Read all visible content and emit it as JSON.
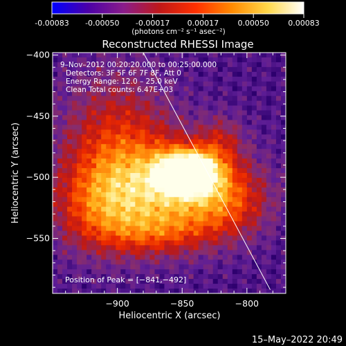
{
  "footer": {
    "timestamp": "15–May–2022 20:49"
  },
  "colorbar": {
    "ticks": [
      "-0.00083",
      "-0.00050",
      "-0.00017",
      "0.00017",
      "0.00050",
      "0.00083"
    ],
    "unit_label": "(photons cm⁻² s⁻¹ asec⁻²)",
    "stops": [
      "#0000ff",
      "#4b00a8",
      "#8a1c8a",
      "#c01818",
      "#ff3000",
      "#ff8a00",
      "#ffd84a",
      "#ffffff"
    ]
  },
  "chart_data": {
    "type": "heatmap",
    "title": "Reconstructed RHESSI Image",
    "xlabel": "Heliocentric X (arcsec)",
    "ylabel": "Heliocentric Y (arcsec)",
    "xlim": [
      -950,
      -770
    ],
    "ylim": [
      -595,
      -398
    ],
    "x_ticks": [
      {
        "value": -900,
        "label": "−900"
      },
      {
        "value": -850,
        "label": "−850"
      },
      {
        "value": -800,
        "label": "−800"
      }
    ],
    "y_ticks": [
      {
        "value": -400,
        "label": "−400"
      },
      {
        "value": -450,
        "label": "−450"
      },
      {
        "value": -500,
        "label": "−500"
      },
      {
        "value": -550,
        "label": "−550"
      }
    ],
    "annotations": [
      "9–Nov–2012 00:20:20.000 to 00:25:00.000",
      "Detectors: 3F 5F 6F 7F 8F, Att 0",
      "Energy Range: 12.0 – 25.0 keV",
      "Clean     Total counts: 6.47E+03"
    ],
    "peak_label": "Position of Peak = [−841,−492]",
    "peak": {
      "x": -841,
      "y": -492
    },
    "limb_line": [
      {
        "x": -880,
        "y": -398
      },
      {
        "x": -782,
        "y": -592
      }
    ],
    "sources": [
      {
        "x": -845,
        "y": -496,
        "sx": 16,
        "sy": 12,
        "amp": 1.0
      },
      {
        "x": -860,
        "y": -510,
        "sx": 38,
        "sy": 26,
        "amp": 0.55
      },
      {
        "x": -900,
        "y": -475,
        "sx": 30,
        "sy": 40,
        "amp": 0.38
      },
      {
        "x": -915,
        "y": -525,
        "sx": 25,
        "sy": 25,
        "amp": 0.32
      },
      {
        "x": -815,
        "y": -520,
        "sx": 22,
        "sy": 20,
        "amp": 0.32
      },
      {
        "x": -870,
        "y": -545,
        "sx": 30,
        "sy": 14,
        "amp": 0.28
      },
      {
        "x": -820,
        "y": -470,
        "sx": 12,
        "sy": 14,
        "amp": 0.22
      }
    ],
    "grid": false
  }
}
